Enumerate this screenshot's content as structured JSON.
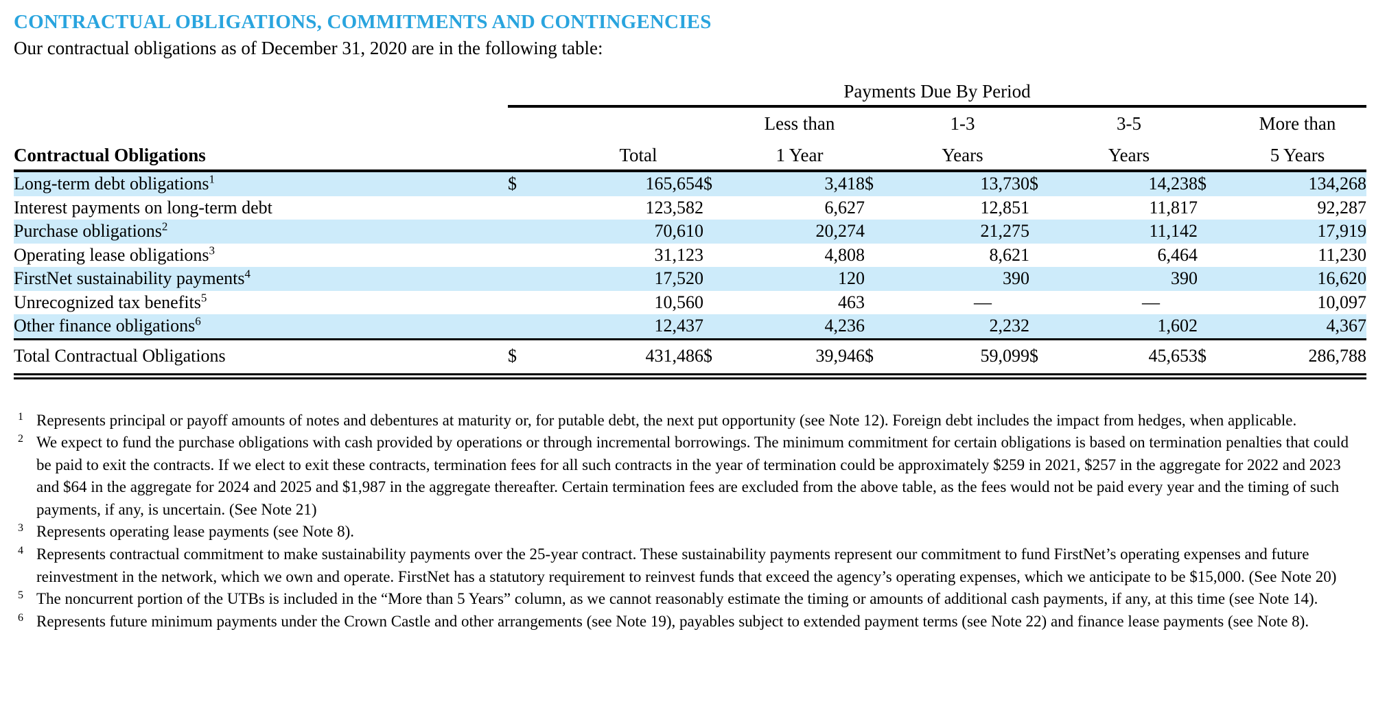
{
  "page": {
    "title": "CONTRACTUAL OBLIGATIONS, COMMITMENTS AND CONTINGENCIES",
    "intro": "Our contractual obligations as of December 31, 2020 are in the following table:"
  },
  "colors": {
    "title_blue": "#29A4DE",
    "row_shade": "#CDEBFA"
  },
  "table": {
    "spanner": "Payments Due By Period",
    "row_header": "Contractual Obligations",
    "currency_symbol": "$",
    "columns": [
      {
        "line1": "",
        "line2": "Total"
      },
      {
        "line1": "Less than",
        "line2": "1 Year"
      },
      {
        "line1": "1-3",
        "line2": "Years"
      },
      {
        "line1": "3-5",
        "line2": "Years"
      },
      {
        "line1": "More than",
        "line2": "5 Years"
      }
    ],
    "rows": [
      {
        "label": "Long-term debt obligations",
        "sup": "1",
        "dollar": true,
        "shaded": true,
        "values": [
          "165,654",
          "3,418",
          "13,730",
          "14,238",
          "134,268"
        ]
      },
      {
        "label": "Interest payments on long-term debt",
        "sup": "",
        "dollar": false,
        "shaded": false,
        "values": [
          "123,582",
          "6,627",
          "12,851",
          "11,817",
          "92,287"
        ]
      },
      {
        "label": "Purchase obligations",
        "sup": "2",
        "dollar": false,
        "shaded": true,
        "values": [
          "70,610",
          "20,274",
          "21,275",
          "11,142",
          "17,919"
        ]
      },
      {
        "label": "Operating lease obligations",
        "sup": "3",
        "dollar": false,
        "shaded": false,
        "values": [
          "31,123",
          "4,808",
          "8,621",
          "6,464",
          "11,230"
        ]
      },
      {
        "label": "FirstNet sustainability payments",
        "sup": "4",
        "dollar": false,
        "shaded": true,
        "values": [
          "17,520",
          "120",
          "390",
          "390",
          "16,620"
        ]
      },
      {
        "label": "Unrecognized tax benefits",
        "sup": "5",
        "dollar": false,
        "shaded": false,
        "values": [
          "10,560",
          "463",
          "—",
          "—",
          "10,097"
        ]
      },
      {
        "label": "Other finance obligations",
        "sup": "6",
        "dollar": false,
        "shaded": true,
        "values": [
          "12,437",
          "4,236",
          "2,232",
          "1,602",
          "4,367"
        ]
      }
    ],
    "total_row": {
      "label": "Total Contractual Obligations",
      "dollar": true,
      "values": [
        "431,486",
        "39,946",
        "59,099",
        "45,653",
        "286,788"
      ]
    }
  },
  "footnotes": [
    {
      "num": "1",
      "text": "Represents principal or payoff amounts of notes and debentures at maturity or, for putable debt, the next put opportunity (see Note 12). Foreign debt includes the impact from hedges, when applicable."
    },
    {
      "num": "2",
      "text": "We expect to fund the purchase obligations with cash provided by operations or through incremental borrowings. The minimum commitment for certain obligations is based on termination penalties that could be paid to exit the contracts. If we elect to exit these contracts, termination fees for all such contracts in the year of termination could be approximately $259 in 2021, $257 in the aggregate for 2022 and 2023 and $64 in the aggregate for 2024 and 2025 and $1,987 in the aggregate thereafter. Certain termination fees are excluded from the above table, as the fees would not be paid every year and the timing of such payments, if any, is uncertain. (See Note 21)"
    },
    {
      "num": "3",
      "text": "Represents operating lease payments (see Note 8)."
    },
    {
      "num": "4",
      "text": "Represents contractual commitment to make sustainability payments over the 25-year contract. These sustainability payments represent our commitment to fund FirstNet’s operating expenses and future reinvestment in the network, which we own and operate. FirstNet has a statutory requirement to reinvest funds that exceed the agency’s operating expenses, which we anticipate to be $15,000. (See Note 20)"
    },
    {
      "num": "5",
      "text": "The noncurrent portion of the UTBs is included in the “More than 5 Years” column, as we cannot reasonably estimate the timing or amounts of additional cash payments, if any, at this time (see Note 14)."
    },
    {
      "num": "6",
      "text": "Represents future minimum payments under the Crown Castle and other arrangements (see Note 19), payables subject to extended payment terms (see Note 22) and finance lease payments (see Note 8)."
    }
  ]
}
